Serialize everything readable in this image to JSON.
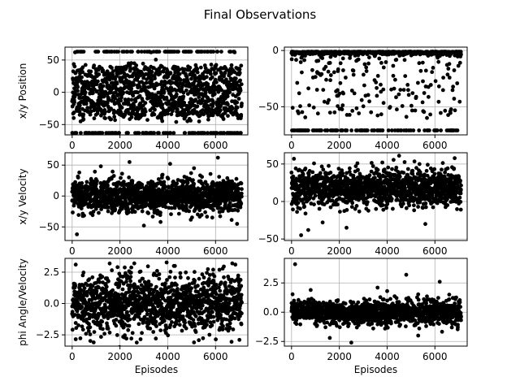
{
  "figure": {
    "title": "Final Observations"
  },
  "chart_data": [
    {
      "type": "scatter",
      "row": 0,
      "col": 0,
      "title": "",
      "xlabel": "",
      "ylabel": "x/y Position",
      "xlim": [
        -300,
        7350
      ],
      "ylim": [
        -66,
        70
      ],
      "xticks": [
        0,
        2000,
        4000,
        6000
      ],
      "yticks": [
        -50,
        0,
        50
      ],
      "xtick_labels": [
        "0",
        "2000",
        "4000",
        "6000"
      ],
      "ytick_labels": [
        "−50",
        "0",
        "50"
      ],
      "grid": true,
      "x": [
        120,
        1650,
        3300,
        5900,
        6800,
        480,
        2600,
        4450,
        5200,
        7000
      ],
      "y": [
        62,
        -63,
        62,
        -63,
        62,
        -42,
        45,
        -35,
        38,
        10
      ],
      "generator": {
        "n": 1400,
        "x_range": [
          0,
          7100
        ],
        "mode": "band_pos",
        "band": [
          -40,
          40
        ],
        "extreme": 63,
        "extreme_frac": 0.12,
        "seed": 11
      }
    },
    {
      "type": "scatter",
      "row": 0,
      "col": 1,
      "title": "",
      "xlabel": "",
      "ylabel": "",
      "xlim": [
        -300,
        7350
      ],
      "ylim": [
        -75,
        3
      ],
      "xticks": [
        0,
        2000,
        4000,
        6000
      ],
      "yticks": [
        -50,
        0
      ],
      "xtick_labels": [
        "0",
        "2000",
        "4000",
        "6000"
      ],
      "ytick_labels": [
        "−50",
        "0"
      ],
      "grid": true,
      "x": [
        300,
        1500,
        2100,
        3600,
        4200,
        5100,
        6500,
        900,
        2800,
        4700
      ],
      "y": [
        -71,
        -71,
        -71,
        -71,
        -71,
        -71,
        -71,
        -24,
        -8,
        -35
      ],
      "generator": {
        "n": 900,
        "x_range": [
          0,
          7100
        ],
        "mode": "top_heavy",
        "top": -1,
        "floor": -71,
        "floor_frac": 0.1,
        "seed": 23
      }
    },
    {
      "type": "scatter",
      "row": 1,
      "col": 0,
      "title": "",
      "xlabel": "",
      "ylabel": "x/y Velocity",
      "xlim": [
        -300,
        7350
      ],
      "ylim": [
        -72,
        70
      ],
      "xticks": [
        0,
        2000,
        4000,
        6000
      ],
      "yticks": [
        -50,
        0,
        50
      ],
      "xtick_labels": [
        "0",
        "2000",
        "4000",
        "6000"
      ],
      "ytick_labels": [
        "−50",
        "0",
        "50"
      ],
      "grid": true,
      "x": [
        200,
        1200,
        2400,
        3700,
        4100,
        5100,
        6100,
        6900,
        300,
        3000
      ],
      "y": [
        -62,
        48,
        55,
        -42,
        52,
        45,
        62,
        -45,
        38,
        -48
      ],
      "generator": {
        "n": 1400,
        "x_range": [
          0,
          7100
        ],
        "mode": "gauss",
        "center": 0,
        "sigma": 13,
        "seed": 37
      }
    },
    {
      "type": "scatter",
      "row": 1,
      "col": 1,
      "title": "",
      "xlabel": "",
      "ylabel": "",
      "xlim": [
        -300,
        7350
      ],
      "ylim": [
        -52,
        65
      ],
      "xticks": [
        0,
        2000,
        4000,
        6000
      ],
      "yticks": [
        -50,
        0,
        50
      ],
      "xtick_labels": [
        "0",
        "2000",
        "4000",
        "6000"
      ],
      "ytick_labels": [
        "−50",
        "0",
        "50"
      ],
      "grid": true,
      "x": [
        100,
        400,
        4500,
        3800,
        1300,
        2300,
        5600,
        6800,
        700,
        6200
      ],
      "y": [
        57,
        -45,
        61,
        52,
        -28,
        -35,
        -30,
        44,
        -38,
        33
      ],
      "generator": {
        "n": 1400,
        "x_range": [
          0,
          7100
        ],
        "mode": "gauss",
        "center": 18,
        "sigma": 12,
        "seed": 53
      }
    },
    {
      "type": "scatter",
      "row": 2,
      "col": 0,
      "title": "",
      "xlabel": "Episodes",
      "ylabel": "phi Angle/Velocity",
      "xlim": [
        -300,
        7350
      ],
      "ylim": [
        -3.4,
        3.6
      ],
      "xticks": [
        0,
        2000,
        4000,
        6000
      ],
      "yticks": [
        -2.5,
        0,
        2.5
      ],
      "xtick_labels": [
        "0",
        "2000",
        "4000",
        "6000"
      ],
      "ytick_labels": [
        "−2.5",
        "0.0",
        "2.5"
      ],
      "grid": true,
      "x": [
        150,
        900,
        1900,
        2600,
        3500,
        4300,
        5100,
        5900,
        6700,
        7000
      ],
      "y": [
        3.1,
        -3.1,
        2.9,
        3.2,
        -2.8,
        3.0,
        -3.1,
        2.7,
        3.2,
        -2.9
      ],
      "generator": {
        "n": 1400,
        "x_range": [
          0,
          7100
        ],
        "mode": "gauss",
        "center": 0,
        "sigma": 1.1,
        "seed": 71
      }
    },
    {
      "type": "scatter",
      "row": 2,
      "col": 1,
      "title": "",
      "xlabel": "Episodes",
      "ylabel": "",
      "xlim": [
        -300,
        7350
      ],
      "ylim": [
        -2.9,
        4.6
      ],
      "xticks": [
        0,
        2000,
        4000,
        6000
      ],
      "yticks": [
        -2.5,
        0,
        2.5
      ],
      "xtick_labels": [
        "0",
        "2000",
        "4000",
        "6000"
      ],
      "ytick_labels": [
        "−2.5",
        "0.0",
        "2.5"
      ],
      "grid": true,
      "x": [
        150,
        4800,
        6200,
        3600,
        2500,
        1600,
        5300,
        800,
        6600,
        4000
      ],
      "y": [
        4.1,
        3.2,
        2.6,
        2.1,
        -2.6,
        -2.2,
        -2.0,
        1.9,
        1.5,
        1.8
      ],
      "generator": {
        "n": 1400,
        "x_range": [
          0,
          7100
        ],
        "mode": "gauss",
        "center": 0,
        "sigma": 0.5,
        "seed": 97
      }
    }
  ]
}
